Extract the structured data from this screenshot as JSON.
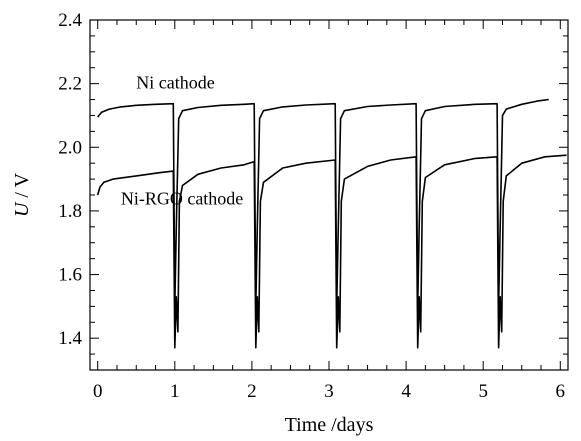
{
  "chart_data": {
    "type": "line",
    "title": "",
    "xlabel": "Time /days",
    "ylabel_italic": "U",
    "ylabel_rest": " / V",
    "xlim": [
      -0.1,
      6.1
    ],
    "ylim": [
      1.3,
      2.4
    ],
    "xticks": [
      0,
      1,
      2,
      3,
      4,
      5,
      6
    ],
    "yticks": [
      1.4,
      1.6,
      1.8,
      2.0,
      2.2,
      2.4
    ],
    "x_tick_labels": [
      "0",
      "1",
      "2",
      "3",
      "4",
      "5",
      "6"
    ],
    "y_tick_labels": [
      "1.4",
      "1.6",
      "1.8",
      "2.0",
      "2.2",
      "2.4"
    ],
    "grid": false,
    "legend": "none",
    "annotations": [
      {
        "text": "Ni cathode",
        "x": 0.5,
        "y": 2.185
      },
      {
        "text": "Ni-RGO cathode",
        "x": 0.3,
        "y": 1.82
      }
    ],
    "series": [
      {
        "color": "#000000",
        "points": [
          [
            0.0,
            2.095
          ],
          [
            0.05,
            2.11
          ],
          [
            0.15,
            2.12
          ],
          [
            0.3,
            2.127
          ],
          [
            0.5,
            2.132
          ],
          [
            0.75,
            2.135
          ],
          [
            0.98,
            2.137
          ],
          [
            1.0,
            1.5
          ],
          [
            1.02,
            1.75
          ],
          [
            1.05,
            2.09
          ],
          [
            1.1,
            2.115
          ],
          [
            1.3,
            2.125
          ],
          [
            1.6,
            2.132
          ],
          [
            1.9,
            2.135
          ],
          [
            2.03,
            2.137
          ],
          [
            2.05,
            1.5
          ],
          [
            2.07,
            1.75
          ],
          [
            2.1,
            2.09
          ],
          [
            2.15,
            2.115
          ],
          [
            2.4,
            2.127
          ],
          [
            2.7,
            2.133
          ],
          [
            3.08,
            2.137
          ],
          [
            3.1,
            1.5
          ],
          [
            3.12,
            1.75
          ],
          [
            3.15,
            2.09
          ],
          [
            3.2,
            2.115
          ],
          [
            3.5,
            2.128
          ],
          [
            3.8,
            2.133
          ],
          [
            4.13,
            2.137
          ],
          [
            4.15,
            1.5
          ],
          [
            4.17,
            1.75
          ],
          [
            4.2,
            2.09
          ],
          [
            4.25,
            2.115
          ],
          [
            4.5,
            2.128
          ],
          [
            4.9,
            2.135
          ],
          [
            5.18,
            2.137
          ],
          [
            5.2,
            1.5
          ],
          [
            5.22,
            1.75
          ],
          [
            5.25,
            2.1
          ],
          [
            5.3,
            2.12
          ],
          [
            5.5,
            2.135
          ],
          [
            5.7,
            2.145
          ],
          [
            5.85,
            2.15
          ]
        ]
      },
      {
        "color": "#000000",
        "points": [
          [
            0.0,
            1.85
          ],
          [
            0.03,
            1.875
          ],
          [
            0.08,
            1.89
          ],
          [
            0.2,
            1.9
          ],
          [
            0.5,
            1.91
          ],
          [
            0.8,
            1.92
          ],
          [
            0.98,
            1.925
          ],
          [
            1.0,
            1.37
          ],
          [
            1.02,
            1.53
          ],
          [
            1.04,
            1.42
          ],
          [
            1.06,
            1.83
          ],
          [
            1.1,
            1.88
          ],
          [
            1.3,
            1.915
          ],
          [
            1.6,
            1.935
          ],
          [
            1.9,
            1.945
          ],
          [
            2.03,
            1.955
          ],
          [
            2.05,
            1.37
          ],
          [
            2.07,
            1.53
          ],
          [
            2.09,
            1.42
          ],
          [
            2.11,
            1.83
          ],
          [
            2.15,
            1.89
          ],
          [
            2.4,
            1.935
          ],
          [
            2.7,
            1.95
          ],
          [
            3.08,
            1.96
          ],
          [
            3.1,
            1.37
          ],
          [
            3.12,
            1.53
          ],
          [
            3.14,
            1.42
          ],
          [
            3.16,
            1.83
          ],
          [
            3.2,
            1.9
          ],
          [
            3.5,
            1.94
          ],
          [
            3.8,
            1.96
          ],
          [
            4.13,
            1.97
          ],
          [
            4.15,
            1.37
          ],
          [
            4.17,
            1.53
          ],
          [
            4.19,
            1.42
          ],
          [
            4.21,
            1.83
          ],
          [
            4.25,
            1.905
          ],
          [
            4.5,
            1.945
          ],
          [
            4.9,
            1.965
          ],
          [
            5.18,
            1.97
          ],
          [
            5.2,
            1.37
          ],
          [
            5.22,
            1.53
          ],
          [
            5.24,
            1.42
          ],
          [
            5.26,
            1.83
          ],
          [
            5.3,
            1.91
          ],
          [
            5.5,
            1.95
          ],
          [
            5.8,
            1.97
          ],
          [
            6.08,
            1.975
          ]
        ]
      }
    ]
  }
}
